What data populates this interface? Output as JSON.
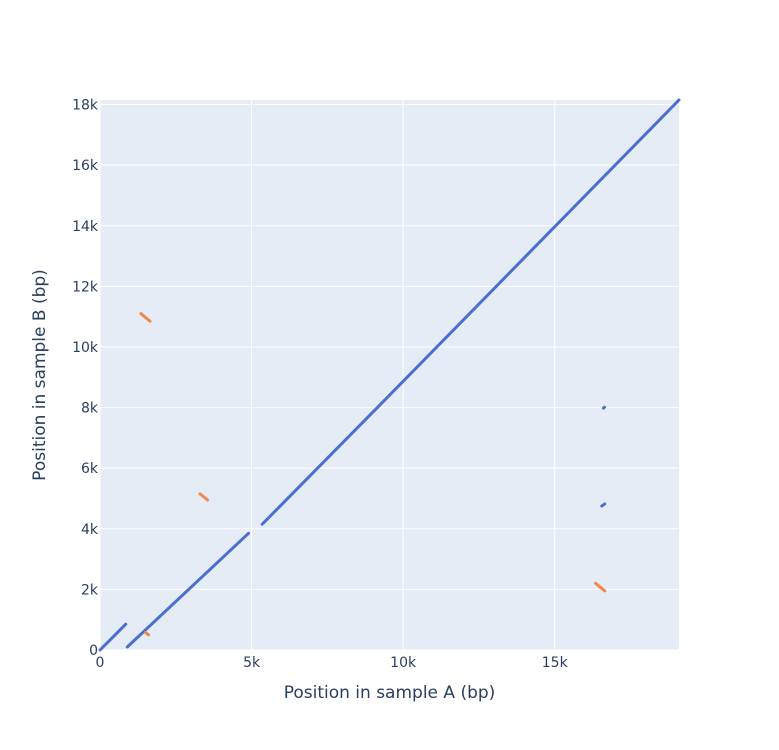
{
  "chart_data": {
    "type": "line",
    "title": "",
    "xlabel": "Position in sample A (bp)",
    "ylabel": "Position in sample B (bp)",
    "xlim": [
      0,
      19100
    ],
    "ylim": [
      0,
      18150
    ],
    "x_ticks": [
      {
        "value": 0,
        "label": "0"
      },
      {
        "value": 5000,
        "label": "5k"
      },
      {
        "value": 10000,
        "label": "10k"
      },
      {
        "value": 15000,
        "label": "15k"
      }
    ],
    "y_ticks": [
      {
        "value": 0,
        "label": "0"
      },
      {
        "value": 2000,
        "label": "2k"
      },
      {
        "value": 4000,
        "label": "4k"
      },
      {
        "value": 6000,
        "label": "6k"
      },
      {
        "value": 8000,
        "label": "8k"
      },
      {
        "value": 10000,
        "label": "10k"
      },
      {
        "value": 12000,
        "label": "12k"
      },
      {
        "value": 14000,
        "label": "14k"
      },
      {
        "value": 16000,
        "label": "16k"
      },
      {
        "value": 18000,
        "label": "18k"
      }
    ],
    "grid": true,
    "legend": "none",
    "colors": {
      "forward": "#4a6fd0",
      "reverse": "#f0884c",
      "plot_background": "#e5ecf6",
      "grid": "#ffffff",
      "text": "#2a3f5f"
    },
    "series": [
      {
        "segments": [
          {
            "x": [
              0,
              850
            ],
            "y": [
              0,
              850
            ]
          },
          {
            "x": [
              900,
              4900
            ],
            "y": [
              100,
              3850
            ]
          },
          {
            "x": [
              5350,
              9150
            ],
            "y": [
              4150,
              8000
            ]
          },
          {
            "x": [
              9150,
              19100
            ],
            "y": [
              8000,
              18150
            ]
          },
          {
            "x": [
              16550,
              16650
            ],
            "y": [
              4750,
              4820
            ]
          },
          {
            "x": [
              16610,
              16640
            ],
            "y": [
              7980,
              8010
            ]
          }
        ]
      },
      {
        "segments": [
          {
            "x": [
              1350,
              1650
            ],
            "y": [
              11100,
              10850
            ]
          },
          {
            "x": [
              1500,
              1600
            ],
            "y": [
              580,
              500
            ]
          },
          {
            "x": [
              3300,
              3550
            ],
            "y": [
              5150,
              4950
            ]
          },
          {
            "x": [
              16350,
              16650
            ],
            "y": [
              2200,
              1950
            ]
          }
        ]
      }
    ]
  }
}
